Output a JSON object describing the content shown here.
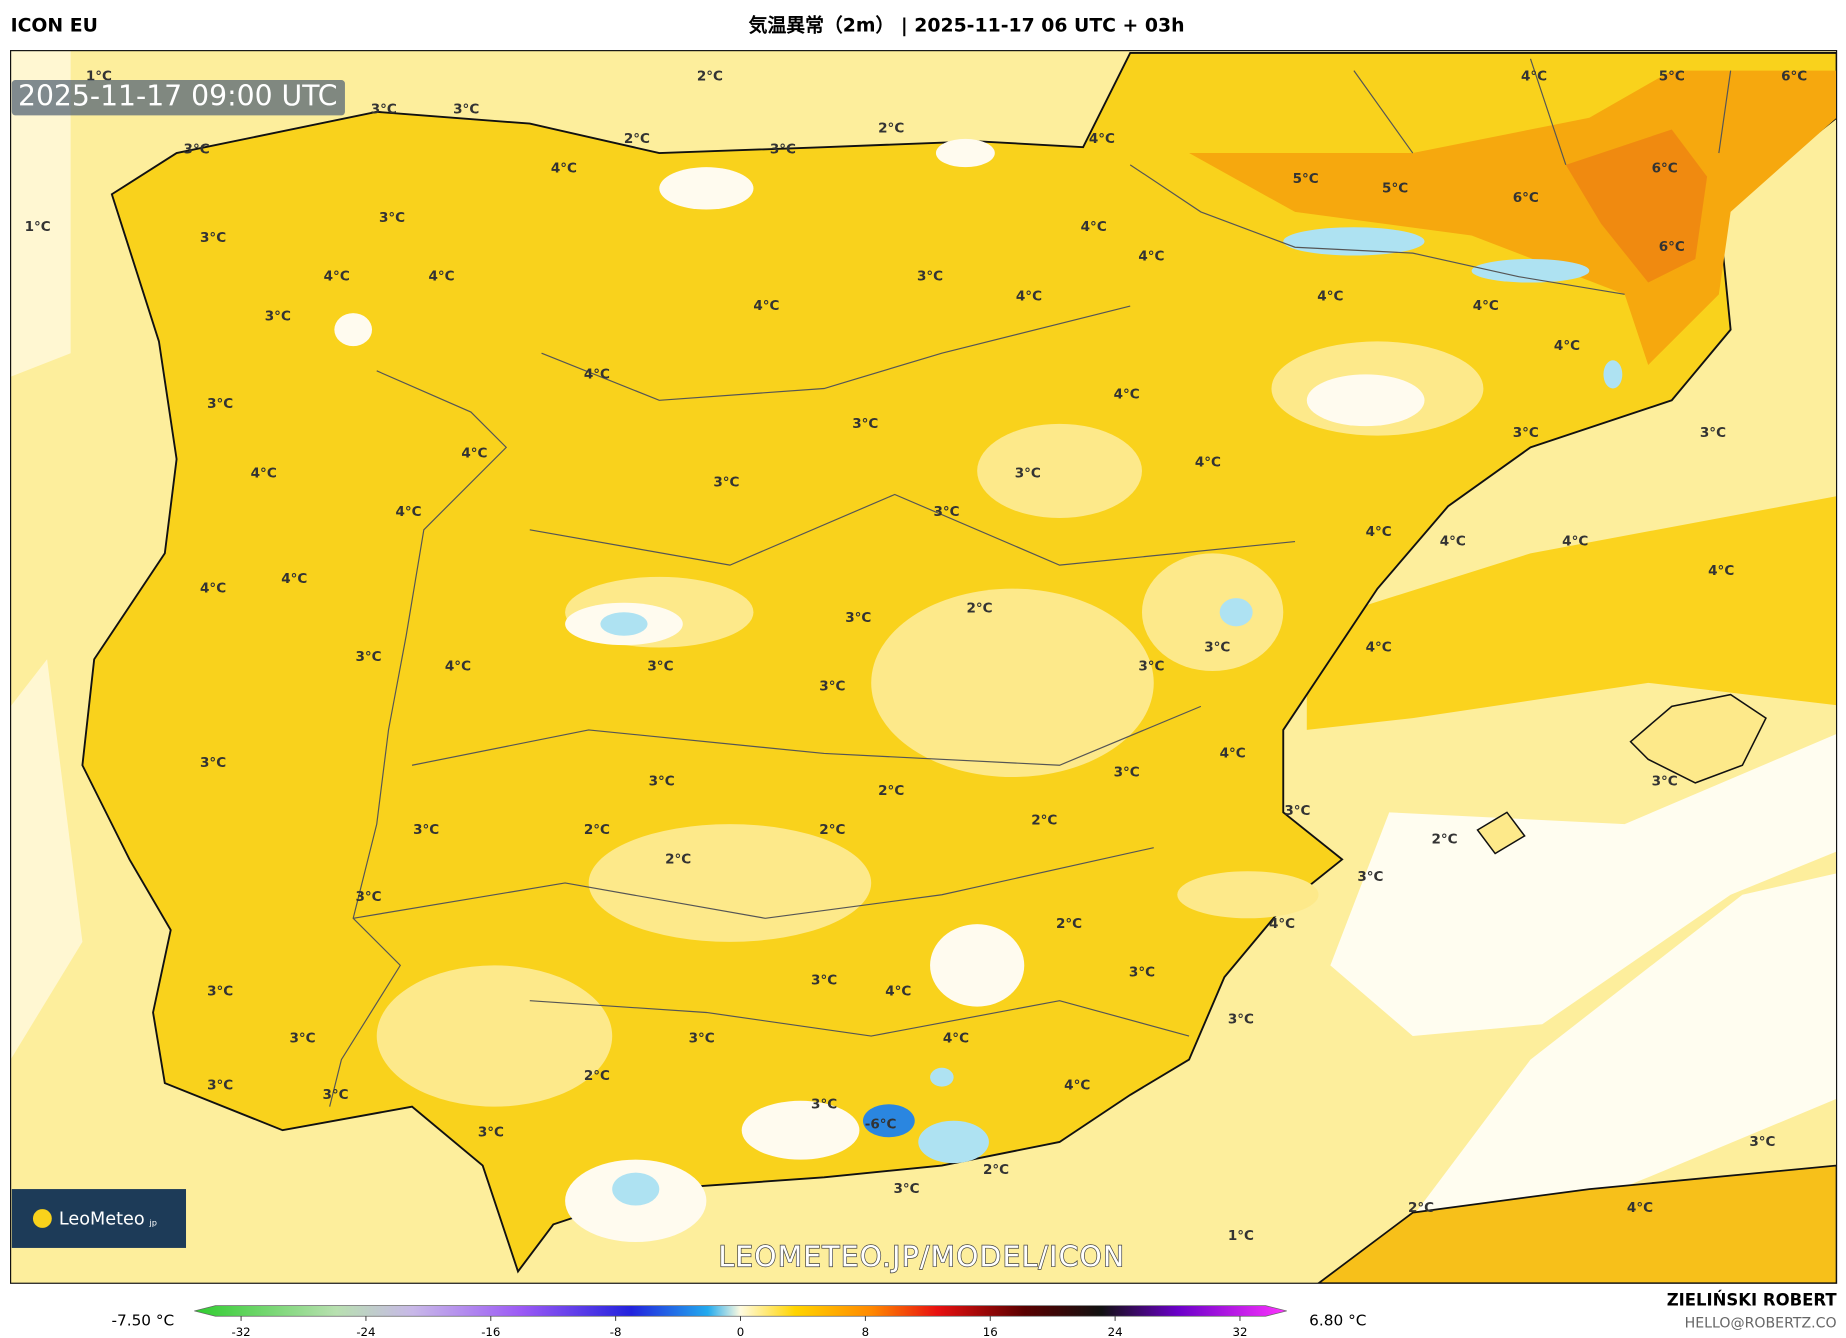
{
  "header": {
    "model": "ICON EU",
    "title": "気温異常（2m） | 2025-11-17 06 UTC + 03h"
  },
  "timestamp": "2025-11-17 09:00 UTC",
  "contour_labels": [
    "1°C",
    "2°C",
    "3°C",
    "3°C",
    "3°C",
    "2°C",
    "2°C",
    "3°C",
    "4°C",
    "4°C",
    "5°C",
    "6°C",
    "4°C",
    "5°C",
    "5°C",
    "6°C",
    "6°C",
    "1°C",
    "3°C",
    "3°C",
    "4°C",
    "4°C",
    "6°C",
    "4°C",
    "4°C",
    "3°C",
    "3°C",
    "4°C",
    "4°C",
    "4°C",
    "4°C",
    "4°C",
    "4°C",
    "3°C",
    "4°C",
    "3°C",
    "4°C",
    "3°C",
    "3°C",
    "4°C",
    "3°C",
    "3°C",
    "4°C",
    "4°C",
    "3°C",
    "4°C",
    "4°C",
    "4°C",
    "4°C",
    "4°C",
    "4°C",
    "2°C",
    "3°C",
    "3°C",
    "4°C",
    "3°C",
    "3°C",
    "4°C",
    "3°C",
    "3°C",
    "4°C",
    "3°C",
    "3°C",
    "3°C",
    "3°C",
    "2°C",
    "3°C",
    "2°C",
    "3°C",
    "2°C",
    "2°C",
    "2°C",
    "2°C",
    "3°C",
    "3°C",
    "2°C",
    "4°C",
    "3°C",
    "3°C",
    "4°C",
    "3°C",
    "3°C",
    "3°C",
    "3°C",
    "4°C",
    "2°C",
    "3°C",
    "4°C",
    "3°C",
    "3°C",
    "-6°C",
    "3°C",
    "3°C",
    "2°C",
    "3°C",
    "2°C",
    "4°C",
    "1°C"
  ],
  "logo": "LeoMeteo",
  "logo_suffix": "jp",
  "watermark": "LEOMETEO.JP/MODEL/ICON",
  "colorbar": {
    "min_label": "-7.50 °C",
    "max_label": "6.80 °C",
    "lim": [
      -35,
      35
    ],
    "ticks": [
      -32,
      -24,
      -16,
      -8,
      0,
      8,
      16,
      24,
      32
    ]
  },
  "credit": {
    "author": "ZIELIŃSKI ROBERT",
    "email": "HELLO@ROBERTZ.CO"
  }
}
